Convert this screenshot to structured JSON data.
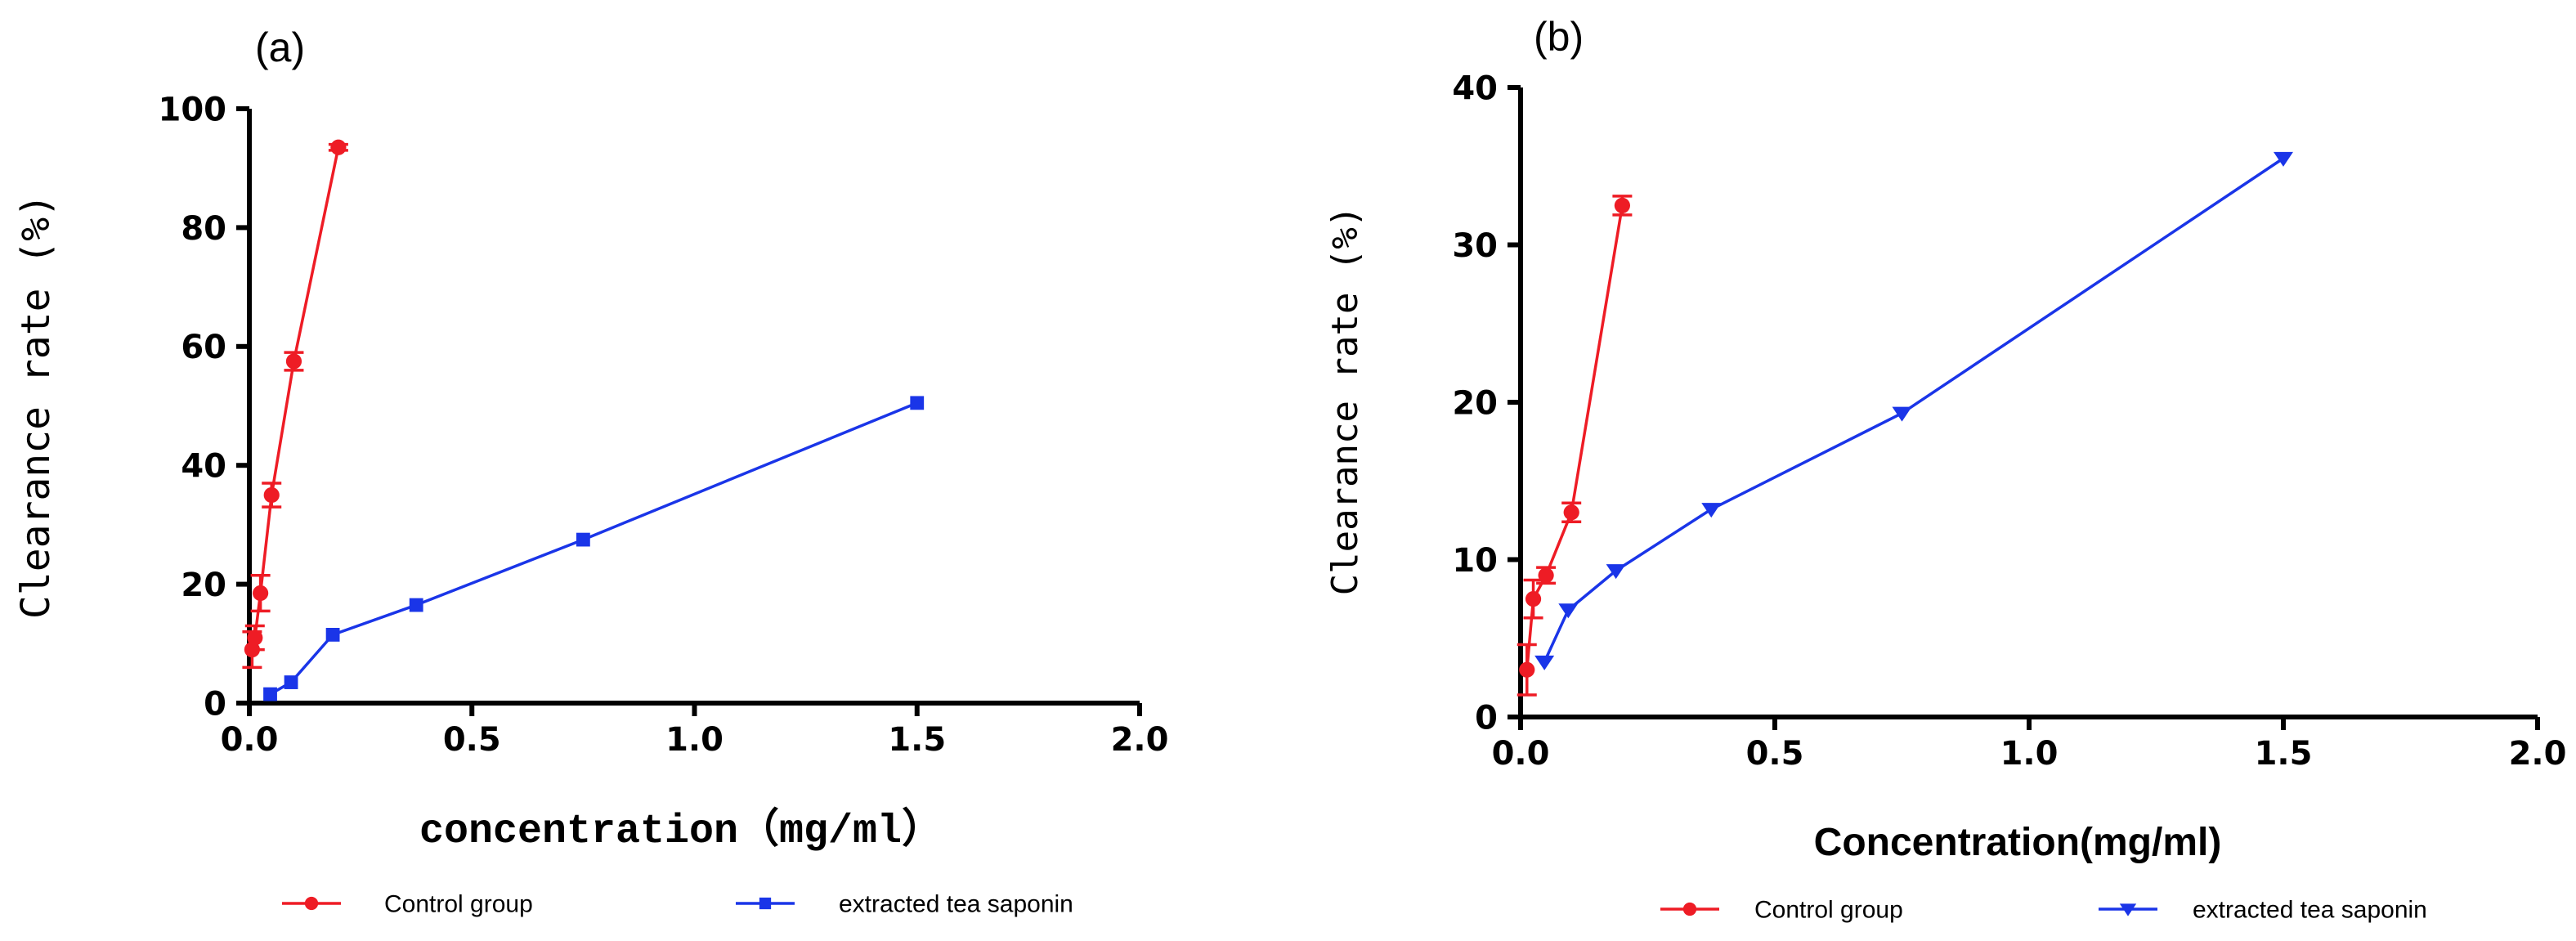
{
  "chart_data": [
    {
      "type": "line",
      "panel_label": "(a)",
      "xlabel": "concentration（mg/ml）",
      "ylabel": "Clearance rate (%)",
      "xlim": [
        0,
        2.0
      ],
      "ylim": [
        0,
        100
      ],
      "xticks": [
        "0.0",
        "0.5",
        "1.0",
        "1.5",
        "2.0"
      ],
      "yticks": [
        "0",
        "20",
        "40",
        "60",
        "80",
        "100"
      ],
      "legend_position": "bottom",
      "series": [
        {
          "name": "Control group",
          "color": "#ee1c25",
          "marker": "circle",
          "points": [
            {
              "x": 0.00625,
              "y": 9,
              "err": 3
            },
            {
              "x": 0.0125,
              "y": 11,
              "err": 2
            },
            {
              "x": 0.025,
              "y": 18.5,
              "err": 3
            },
            {
              "x": 0.05,
              "y": 35,
              "err": 2
            },
            {
              "x": 0.1,
              "y": 57.5,
              "err": 1.5
            },
            {
              "x": 0.2,
              "y": 93.5,
              "err": 0.5
            }
          ]
        },
        {
          "name": "extracted tea saponin",
          "color": "#1a35e8",
          "marker": "square",
          "points": [
            {
              "x": 0.046875,
              "y": 1.5,
              "err": 0
            },
            {
              "x": 0.09375,
              "y": 3.5,
              "err": 0
            },
            {
              "x": 0.1875,
              "y": 11.5,
              "err": 0
            },
            {
              "x": 0.375,
              "y": 16.5,
              "err": 0
            },
            {
              "x": 0.75,
              "y": 27.5,
              "err": 0
            },
            {
              "x": 1.5,
              "y": 50.5,
              "err": 0
            }
          ]
        }
      ]
    },
    {
      "type": "line",
      "panel_label": "(b)",
      "xlabel": "Concentration(mg/ml)",
      "ylabel": "Clearance rate (%)",
      "xlim": [
        0,
        2.0
      ],
      "ylim": [
        0,
        40
      ],
      "xticks": [
        "0.0",
        "0.5",
        "1.0",
        "1.5",
        "2.0"
      ],
      "yticks": [
        "0",
        "10",
        "20",
        "30",
        "40"
      ],
      "legend_position": "bottom",
      "series": [
        {
          "name": "Control group",
          "color": "#ee1c25",
          "marker": "circle",
          "points": [
            {
              "x": 0.0125,
              "y": 3,
              "err": 1.6
            },
            {
              "x": 0.025,
              "y": 7.5,
              "err": 1.2
            },
            {
              "x": 0.05,
              "y": 9,
              "err": 0.5
            },
            {
              "x": 0.1,
              "y": 13,
              "err": 0.6
            },
            {
              "x": 0.2,
              "y": 32.5,
              "err": 0.6
            }
          ]
        },
        {
          "name": "extracted tea saponin",
          "color": "#1a35e8",
          "marker": "triangle-down",
          "points": [
            {
              "x": 0.046875,
              "y": 3.5,
              "err": 0
            },
            {
              "x": 0.09375,
              "y": 6.8,
              "err": 0
            },
            {
              "x": 0.1875,
              "y": 9.3,
              "err": 0
            },
            {
              "x": 0.375,
              "y": 13.2,
              "err": 0
            },
            {
              "x": 0.75,
              "y": 19.3,
              "err": 0
            },
            {
              "x": 1.5,
              "y": 35.5,
              "err": 0
            }
          ]
        }
      ]
    }
  ]
}
